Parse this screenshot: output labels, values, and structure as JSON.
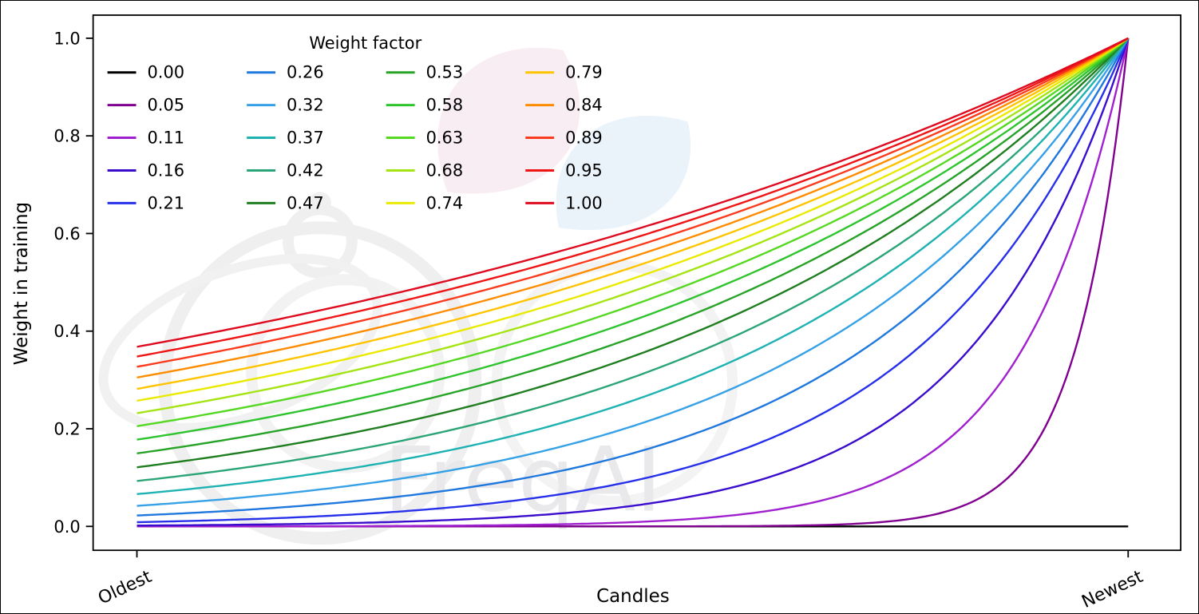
{
  "figure": {
    "watermark_text": "FreqAI"
  },
  "chart_data": {
    "type": "line",
    "title": "",
    "xlabel": "Candles",
    "ylabel": "Weight in training",
    "x_tick_labels": [
      "Oldest",
      "Newest"
    ],
    "y_tick_labels": [
      "0.0",
      "0.2",
      "0.4",
      "0.6",
      "0.8",
      "1.0"
    ],
    "xlim": [
      0,
      1
    ],
    "ylim": [
      0,
      1
    ],
    "grid": false,
    "legend": {
      "title": "Weight factor",
      "position": "upper-left",
      "columns": 4,
      "order": "column-major"
    },
    "formula": "weight(x) = exp(-(1 - x) / weight_factor) for x in [0,1] from Oldest to Newest; weight_factor = 0.00 stays flat at 0",
    "sample_x": [
      0,
      0.25,
      0.5,
      0.75,
      1
    ],
    "series": [
      {
        "label": "0.00",
        "factor": 0,
        "color": "#000000",
        "values": [
          0,
          0,
          0,
          0,
          0
        ]
      },
      {
        "label": "0.05",
        "factor": 0.0526,
        "color": "#800090",
        "values": [
          0,
          0,
          0,
          0.009,
          1
        ]
      },
      {
        "label": "0.11",
        "factor": 0.1053,
        "color": "#a020d0",
        "values": [
          0,
          0.001,
          0.009,
          0.093,
          1
        ]
      },
      {
        "label": "0.16",
        "factor": 0.1579,
        "color": "#3a0ccd",
        "values": [
          0.002,
          0.009,
          0.042,
          0.205,
          1
        ]
      },
      {
        "label": "0.21",
        "factor": 0.2105,
        "color": "#2630ea",
        "values": [
          0.009,
          0.028,
          0.093,
          0.305,
          1
        ]
      },
      {
        "label": "0.26",
        "factor": 0.2632,
        "color": "#1f78dd",
        "values": [
          0.022,
          0.058,
          0.15,
          0.387,
          1
        ]
      },
      {
        "label": "0.32",
        "factor": 0.3158,
        "color": "#36a1e6",
        "values": [
          0.042,
          0.093,
          0.205,
          0.453,
          1
        ]
      },
      {
        "label": "0.37",
        "factor": 0.3684,
        "color": "#1fb2b2",
        "values": [
          0.066,
          0.131,
          0.257,
          0.507,
          1
        ]
      },
      {
        "label": "0.42",
        "factor": 0.4211,
        "color": "#2ba577",
        "values": [
          0.093,
          0.168,
          0.305,
          0.552,
          1
        ]
      },
      {
        "label": "0.47",
        "factor": 0.4737,
        "color": "#1f7e1f",
        "values": [
          0.121,
          0.205,
          0.348,
          0.59,
          1
        ]
      },
      {
        "label": "0.53",
        "factor": 0.5263,
        "color": "#27a327",
        "values": [
          0.15,
          0.24,
          0.387,
          0.622,
          1
        ]
      },
      {
        "label": "0.58",
        "factor": 0.5789,
        "color": "#2ec42e",
        "values": [
          0.178,
          0.274,
          0.422,
          0.649,
          1
        ]
      },
      {
        "label": "0.63",
        "factor": 0.6316,
        "color": "#55d822",
        "values": [
          0.205,
          0.305,
          0.453,
          0.673,
          1
        ]
      },
      {
        "label": "0.68",
        "factor": 0.6842,
        "color": "#a4e412",
        "values": [
          0.232,
          0.334,
          0.482,
          0.694,
          1
        ]
      },
      {
        "label": "0.74",
        "factor": 0.7368,
        "color": "#eaea00",
        "values": [
          0.257,
          0.361,
          0.507,
          0.712,
          1
        ]
      },
      {
        "label": "0.79",
        "factor": 0.7895,
        "color": "#ffc400",
        "values": [
          0.282,
          0.387,
          0.531,
          0.729,
          1
        ]
      },
      {
        "label": "0.84",
        "factor": 0.8421,
        "color": "#ff8c00",
        "values": [
          0.305,
          0.41,
          0.552,
          0.743,
          1
        ]
      },
      {
        "label": "0.89",
        "factor": 0.8947,
        "color": "#fb3b1e",
        "values": [
          0.327,
          0.433,
          0.572,
          0.756,
          1
        ]
      },
      {
        "label": "0.95",
        "factor": 0.9474,
        "color": "#ef1515",
        "values": [
          0.348,
          0.453,
          0.59,
          0.768,
          1
        ]
      },
      {
        "label": "1.00",
        "factor": 1,
        "color": "#de0b20",
        "values": [
          0.368,
          0.472,
          0.607,
          0.779,
          1
        ]
      }
    ]
  }
}
